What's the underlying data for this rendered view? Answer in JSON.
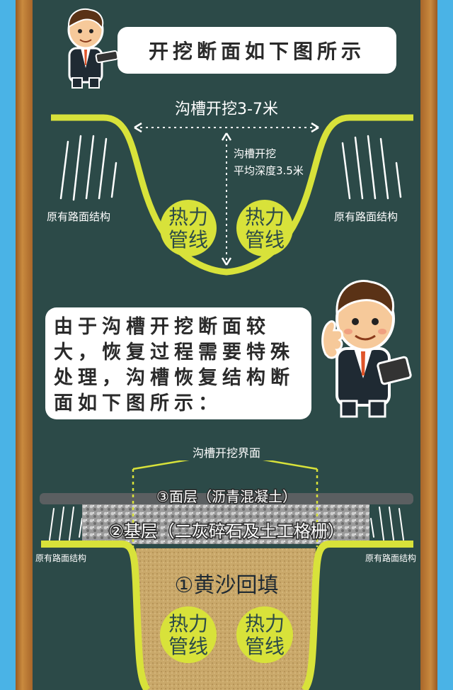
{
  "banner": {
    "title": "开挖断面如下图所示"
  },
  "diagram1": {
    "trench_width": "沟槽开挖3-7米",
    "depth_line1": "沟槽开挖",
    "depth_line2": "平均深度3.5米",
    "left_road": "原有路面结构",
    "right_road": "原有路面结构",
    "pipe_line1": "热力",
    "pipe_line2": "管线"
  },
  "note": {
    "text": "由于沟槽开挖断面较大，恢复过程需要特殊处理，沟槽恢复结构断面如下图所示："
  },
  "diagram2": {
    "interface": "沟槽开挖界面",
    "layer3": "③面层（沥青混凝土）",
    "layer2": "②基层（二灰碎石及土工格栅）",
    "layer1": "①黄沙回填",
    "left_road": "原有路面结构",
    "right_road": "原有路面结构",
    "pipe_line1": "热力",
    "pipe_line2": "管线"
  },
  "colors": {
    "board": "#2c4a48",
    "accent": "#d8e23a",
    "frame": "#b8782f",
    "sky": "#4ab3e6"
  }
}
